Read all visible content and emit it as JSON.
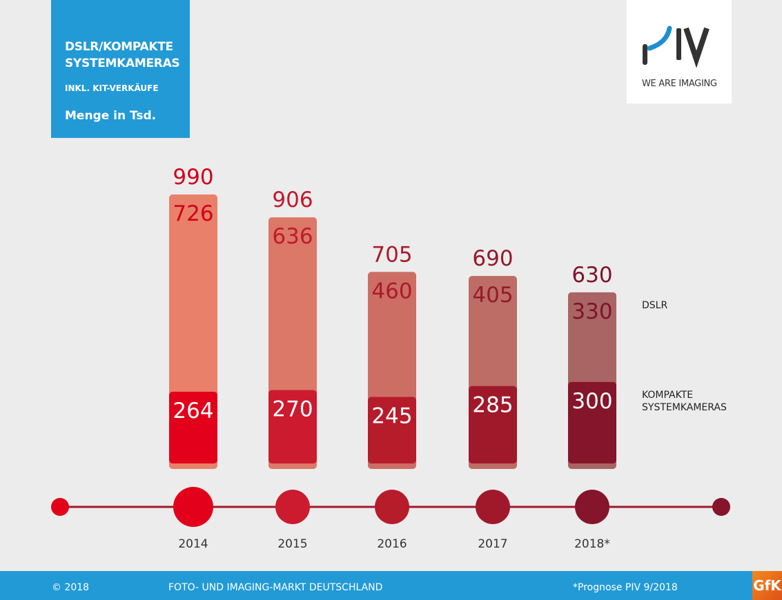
{
  "header": {
    "title": "DSLR/KOMPAKTE SYSTEMKAMERAS",
    "subtitle": "INKL. KIT-VERKÄUFE",
    "unit": "Menge in Tsd."
  },
  "logo": {
    "text": "PIV",
    "tagline": "WE ARE IMAGING"
  },
  "legend": {
    "dslr": "DSLR",
    "kompakte": "KOMPAKTE SYSTEMKAMERAS"
  },
  "footer": {
    "copyright": "© 2018",
    "center": "FOTO- UND IMAGING-MARKT DEUTSCHLAND",
    "note": "*Prognose PIV 9/2018",
    "gfk": "GfK"
  },
  "chart_data": {
    "type": "bar",
    "stacked": true,
    "title": "DSLR/KOMPAKTE SYSTEMKAMERAS",
    "ylabel": "Menge in Tsd.",
    "categories": [
      "2014",
      "2015",
      "2016",
      "2017",
      "2018*"
    ],
    "totals": [
      990,
      906,
      705,
      690,
      630
    ],
    "series": [
      {
        "name": "KOMPAKTE SYSTEMKAMERAS",
        "values": [
          264,
          270,
          245,
          285,
          300
        ],
        "colors": [
          "#e2001a",
          "#cc1a2e",
          "#b71c2b",
          "#a0192b",
          "#85152a"
        ]
      },
      {
        "name": "DSLR",
        "values": [
          726,
          636,
          460,
          405,
          330
        ],
        "colors": [
          "#e9806a",
          "#dc7868",
          "#cc6e64",
          "#bd6d66",
          "#a96563"
        ]
      }
    ],
    "label_colors": [
      "#d0021b",
      "#bf1a2e",
      "#ab1b2b",
      "#941a2b",
      "#7d1529"
    ],
    "ylim": [
      0,
      1000
    ]
  }
}
